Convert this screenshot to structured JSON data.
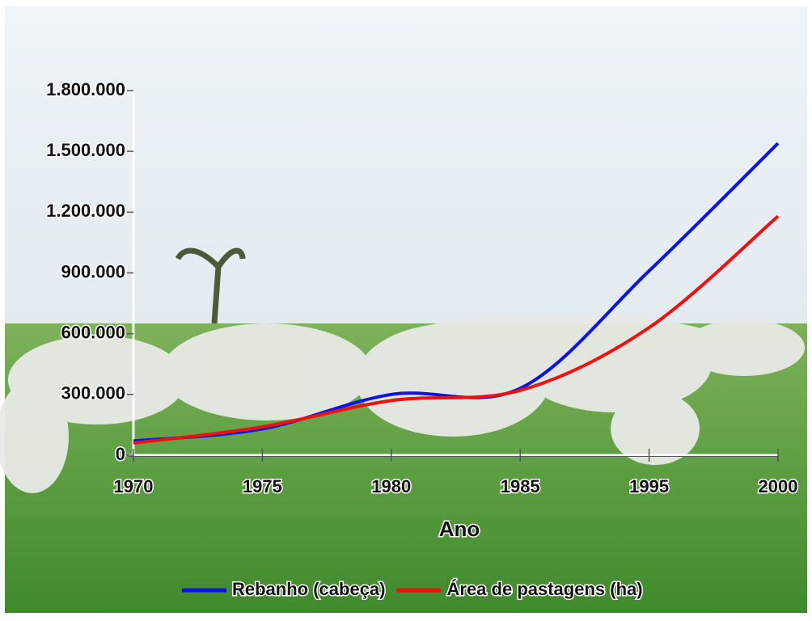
{
  "chart_data": {
    "type": "line",
    "x_label": "Ano",
    "categories": [
      "1970",
      "1975",
      "1980",
      "1985",
      "1995",
      "2000"
    ],
    "series": [
      {
        "name": "Rebanho (cabeça)",
        "color": "#0a14e6",
        "values": [
          70000,
          130000,
          300000,
          330000,
          910000,
          1540000
        ]
      },
      {
        "name": "Área de pastagens (ha)",
        "color": "#f01010",
        "values": [
          60000,
          140000,
          270000,
          320000,
          630000,
          1180000
        ]
      }
    ],
    "ylim": [
      0,
      1800000
    ],
    "yticks": [
      0,
      {
        "value": 300000,
        "label": "300.000"
      },
      {
        "value": 600000,
        "label": "600.000"
      },
      {
        "value": 900000,
        "label": "900.000"
      },
      {
        "value": 1200000,
        "label": "1.200.000"
      },
      {
        "value": 1500000,
        "label": "1.500.000"
      },
      {
        "value": 1800000,
        "label": "1.800.000"
      }
    ],
    "legend": "bottom"
  }
}
